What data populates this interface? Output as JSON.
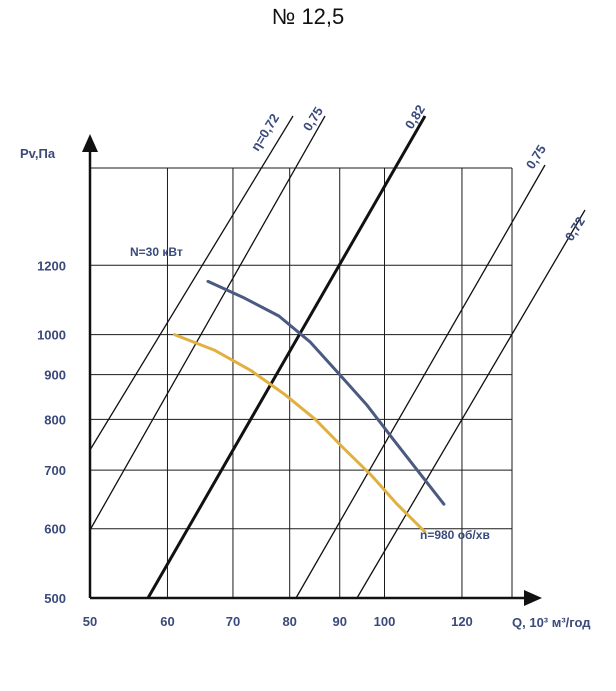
{
  "title": "№ 12,5",
  "chart_data": {
    "type": "line",
    "title": "№ 12,5",
    "xlabel": "Q, 10³ м³/год",
    "ylabel": "Pv,Па",
    "xscale": "log",
    "yscale": "log",
    "xlim": [
      50,
      135
    ],
    "ylim": [
      500,
      1550
    ],
    "x_ticks": [
      50,
      60,
      70,
      80,
      90,
      100,
      120
    ],
    "x_tick_labels": [
      "50",
      "60",
      "70",
      "80",
      "90",
      "100",
      "120"
    ],
    "y_ticks": [
      500,
      600,
      700,
      800,
      900,
      1000,
      1200
    ],
    "y_tick_labels": [
      "500",
      "600",
      "700",
      "800",
      "900",
      "1000",
      "1200"
    ],
    "grid": true,
    "series": [
      {
        "name": "N=30 кВт",
        "color": "#4a5a80",
        "x": [
          66,
          72,
          78,
          84,
          90,
          96,
          102,
          108,
          115
        ],
        "y": [
          1150,
          1100,
          1050,
          980,
          900,
          830,
          760,
          700,
          640
        ]
      },
      {
        "name": "n=980 об/хв",
        "color": "#e0b040",
        "x": [
          61,
          67,
          73,
          79,
          85,
          91,
          97,
          103,
          110
        ],
        "y": [
          1000,
          960,
          910,
          855,
          800,
          740,
          690,
          640,
          595
        ]
      }
    ],
    "efficiency_lines": [
      {
        "label": "η=0,72",
        "bold": false
      },
      {
        "label": "0,75",
        "bold": false
      },
      {
        "label": "0,82",
        "bold": true
      },
      {
        "label": "0,75",
        "bold": false
      },
      {
        "label": "0,72",
        "bold": false
      }
    ],
    "annotations": [
      "N=30 кВт",
      "n=980 об/хв"
    ]
  }
}
